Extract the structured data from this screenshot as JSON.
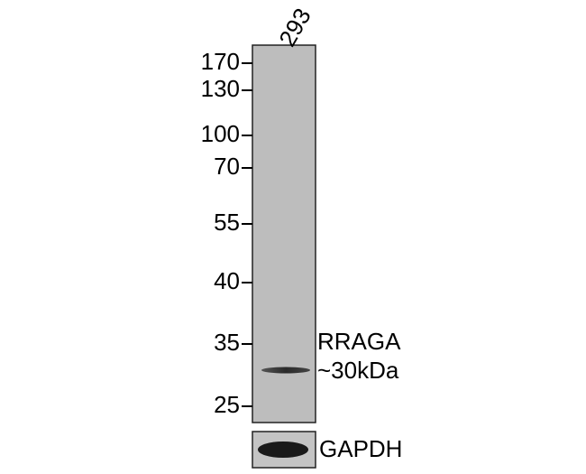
{
  "lane_label": "293",
  "markers": [
    "170",
    "130",
    "100",
    "70",
    "55",
    "40",
    "35",
    "25"
  ],
  "band_labels": {
    "protein": "RRAGA",
    "size": "~30kDa"
  },
  "loading_control": "GAPDH"
}
